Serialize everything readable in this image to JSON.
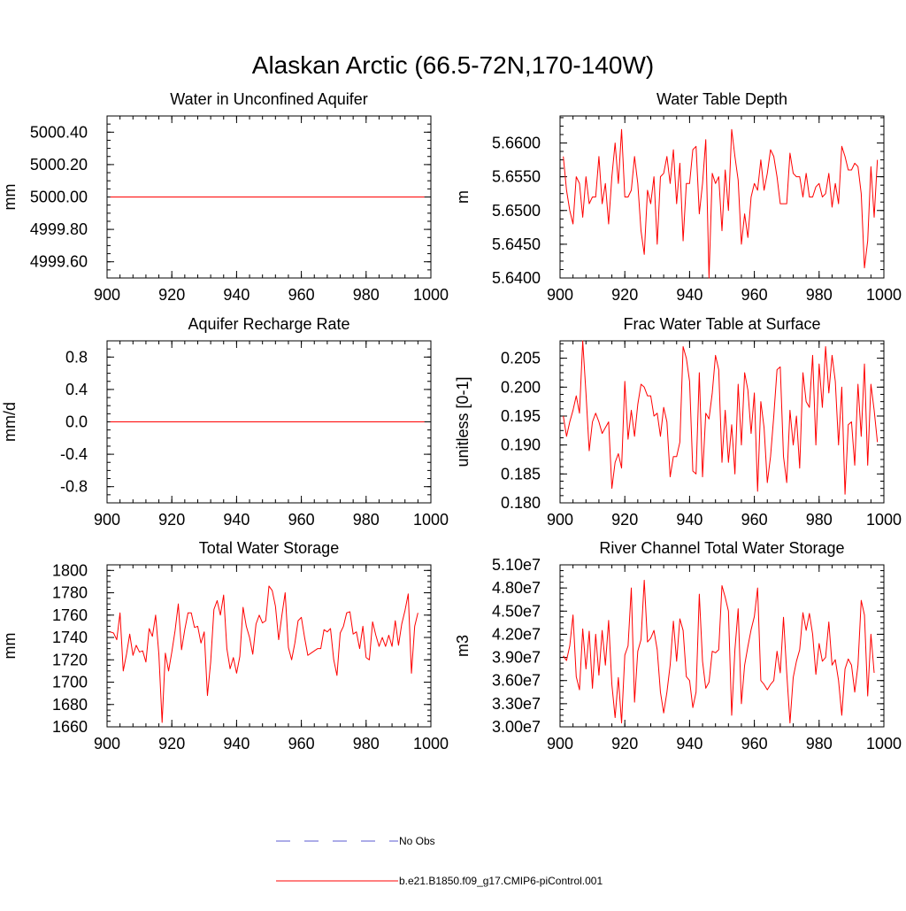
{
  "title": "Alaskan Arctic (66.5-72N,170-140W)",
  "colors": {
    "model": "#ff0000",
    "obs": "#5a5ad2",
    "axis": "#000000"
  },
  "legend": {
    "placement": "bottom-center",
    "entries": [
      {
        "label": "No Obs",
        "style": "dashed",
        "color": "#5a5ad2"
      },
      {
        "label": "b.e21.B1850.f09_g17.CMIP6-piControl.001",
        "style": "solid",
        "color": "#ff0000"
      }
    ]
  },
  "chart_data": [
    {
      "type": "line",
      "title": "Water in Unconfined Aquifer",
      "ylabel": "mm",
      "xlim": [
        900,
        1000
      ],
      "ylim": [
        4999.5,
        5000.5
      ],
      "xticks": [
        900,
        920,
        940,
        960,
        980,
        1000
      ],
      "xtick_labels": [
        "900",
        "920",
        "940",
        "960",
        "980",
        "1000"
      ],
      "yticks": [
        4999.6,
        4999.8,
        5000.0,
        5000.2,
        5000.4
      ],
      "ytick_labels": [
        "4999.60",
        "4999.80",
        "5000.00",
        "5000.20",
        "5000.40"
      ],
      "x_start": 901,
      "series": [
        {
          "values": [
            5000,
            5000,
            5000,
            5000,
            5000,
            5000,
            5000,
            5000,
            5000,
            5000,
            5000,
            5000,
            5000,
            5000,
            5000,
            5000,
            5000,
            5000,
            5000,
            5000,
            5000,
            5000,
            5000,
            5000,
            5000,
            5000,
            5000,
            5000,
            5000,
            5000,
            5000,
            5000,
            5000,
            5000,
            5000,
            5000,
            5000,
            5000,
            5000,
            5000,
            5000,
            5000,
            5000,
            5000,
            5000,
            5000,
            5000,
            5000,
            5000,
            5000,
            5000,
            5000,
            5000,
            5000,
            5000,
            5000,
            5000,
            5000,
            5000,
            5000,
            5000,
            5000,
            5000,
            5000,
            5000,
            5000,
            5000,
            5000,
            5000,
            5000,
            5000,
            5000,
            5000,
            5000,
            5000,
            5000,
            5000,
            5000,
            5000,
            5000,
            5000,
            5000,
            5000,
            5000,
            5000,
            5000,
            5000,
            5000,
            5000,
            5000,
            5000,
            5000,
            5000,
            5000,
            5000,
            5000,
            5000,
            5000
          ]
        }
      ]
    },
    {
      "type": "line",
      "title": "Water Table Depth",
      "ylabel": "m",
      "xlim": [
        900,
        1000
      ],
      "ylim": [
        5.64,
        5.664
      ],
      "xticks": [
        900,
        920,
        940,
        960,
        980,
        1000
      ],
      "xtick_labels": [
        "900",
        "920",
        "940",
        "960",
        "980",
        "1000"
      ],
      "yticks": [
        5.64,
        5.645,
        5.65,
        5.655,
        5.66
      ],
      "ytick_labels": [
        "5.6400",
        "5.6450",
        "5.6500",
        "5.6550",
        "5.6600"
      ],
      "x_start": 901,
      "series": [
        {
          "values": [
            5.658,
            5.653,
            5.65,
            5.648,
            5.655,
            5.654,
            5.649,
            5.655,
            5.651,
            5.652,
            5.652,
            5.658,
            5.651,
            5.654,
            5.648,
            5.655,
            5.66,
            5.654,
            5.662,
            5.652,
            5.652,
            5.653,
            5.658,
            5.654,
            5.647,
            5.6435,
            5.653,
            5.651,
            5.655,
            5.645,
            5.655,
            5.6555,
            5.658,
            5.654,
            5.659,
            5.651,
            5.657,
            5.6455,
            5.654,
            5.654,
            5.659,
            5.6595,
            5.6495,
            5.654,
            5.6605,
            5.64,
            5.6555,
            5.654,
            5.655,
            5.647,
            5.656,
            5.65,
            5.662,
            5.658,
            5.6545,
            5.645,
            5.6495,
            5.646,
            5.652,
            5.654,
            5.653,
            5.6575,
            5.653,
            5.6555,
            5.659,
            5.658,
            5.655,
            5.651,
            5.651,
            5.651,
            5.6585,
            5.6555,
            5.655,
            5.655,
            5.652,
            5.6555,
            5.652,
            5.652,
            5.6535,
            5.654,
            5.652,
            5.6525,
            5.6555,
            5.6505,
            5.654,
            5.651,
            5.6595,
            5.658,
            5.656,
            5.656,
            5.657,
            5.6565,
            5.6525,
            5.6415,
            5.6455,
            5.6565,
            5.649,
            5.6575
          ]
        }
      ]
    },
    {
      "type": "line",
      "title": "Aquifer Recharge Rate",
      "ylabel": "mm/d",
      "xlim": [
        900,
        1000
      ],
      "ylim": [
        -1,
        1
      ],
      "xticks": [
        900,
        920,
        940,
        960,
        980,
        1000
      ],
      "xtick_labels": [
        "900",
        "920",
        "940",
        "960",
        "980",
        "1000"
      ],
      "yticks": [
        -0.8,
        -0.4,
        0.0,
        0.4,
        0.8
      ],
      "ytick_labels": [
        "-0.8",
        "-0.4",
        "0.0",
        "0.4",
        "0.8"
      ],
      "x_start": 901,
      "series": [
        {
          "values": [
            0,
            0,
            0,
            0,
            0,
            0,
            0,
            0,
            0,
            0,
            0,
            0,
            0,
            0,
            0,
            0,
            0,
            0,
            0,
            0,
            0,
            0,
            0,
            0,
            0,
            0,
            0,
            0,
            0,
            0,
            0,
            0,
            0,
            0,
            0,
            0,
            0,
            0,
            0,
            0,
            0,
            0,
            0,
            0,
            0,
            0,
            0,
            0,
            0,
            0,
            0,
            0,
            0,
            0,
            0,
            0,
            0,
            0,
            0,
            0,
            0,
            0,
            0,
            0,
            0,
            0,
            0,
            0,
            0,
            0,
            0,
            0,
            0,
            0,
            0,
            0,
            0,
            0,
            0,
            0,
            0,
            0,
            0,
            0,
            0,
            0,
            0,
            0,
            0,
            0,
            0,
            0,
            0,
            0,
            0,
            0,
            0,
            0
          ]
        }
      ]
    },
    {
      "type": "line",
      "title": "Frac Water Table at Surface",
      "ylabel": "unitless [0-1]",
      "xlim": [
        900,
        1000
      ],
      "ylim": [
        0.18,
        0.208
      ],
      "xticks": [
        900,
        920,
        940,
        960,
        980,
        1000
      ],
      "xtick_labels": [
        "900",
        "920",
        "940",
        "960",
        "980",
        "1000"
      ],
      "yticks": [
        0.18,
        0.185,
        0.19,
        0.195,
        0.2,
        0.205
      ],
      "ytick_labels": [
        "0.180",
        "0.185",
        "0.190",
        "0.195",
        "0.200",
        "0.205"
      ],
      "x_start": 901,
      "series": [
        {
          "values": [
            0.195,
            0.1915,
            0.194,
            0.196,
            0.1985,
            0.1955,
            0.208,
            0.199,
            0.189,
            0.194,
            0.1955,
            0.194,
            0.192,
            0.193,
            0.194,
            0.1825,
            0.187,
            0.1885,
            0.186,
            0.201,
            0.191,
            0.196,
            0.1915,
            0.197,
            0.2005,
            0.2,
            0.1985,
            0.1985,
            0.195,
            0.1955,
            0.1915,
            0.1965,
            0.194,
            0.1845,
            0.188,
            0.188,
            0.1905,
            0.207,
            0.205,
            0.201,
            0.1855,
            0.185,
            0.2025,
            0.1845,
            0.1955,
            0.1945,
            0.199,
            0.2055,
            0.203,
            0.187,
            0.196,
            0.187,
            0.1935,
            0.185,
            0.2005,
            0.19,
            0.2025,
            0.1995,
            0.192,
            0.199,
            0.182,
            0.1975,
            0.193,
            0.1835,
            0.188,
            0.195,
            0.203,
            0.2035,
            0.188,
            0.1835,
            0.196,
            0.19,
            0.195,
            0.186,
            0.2025,
            0.1975,
            0.1965,
            0.2055,
            0.19,
            0.204,
            0.1965,
            0.207,
            0.199,
            0.2055,
            0.201,
            0.19,
            0.2,
            0.1815,
            0.1935,
            0.194,
            0.1865,
            0.2005,
            0.1915,
            0.204,
            0.1865,
            0.2005,
            0.196,
            0.1905
          ]
        }
      ]
    },
    {
      "type": "line",
      "title": "Total Water Storage",
      "ylabel": "mm",
      "xlim": [
        900,
        1000
      ],
      "ylim": [
        1660,
        1805
      ],
      "xticks": [
        900,
        920,
        940,
        960,
        980,
        1000
      ],
      "xtick_labels": [
        "900",
        "920",
        "940",
        "960",
        "980",
        "1000"
      ],
      "yticks": [
        1660,
        1680,
        1700,
        1720,
        1740,
        1760,
        1780,
        1800
      ],
      "ytick_labels": [
        "1660",
        "1680",
        "1700",
        "1720",
        "1740",
        "1760",
        "1780",
        "1800"
      ],
      "x_start": 901,
      "series": [
        {
          "values": [
            1745,
            1744,
            1738,
            1762,
            1710,
            1725,
            1743,
            1724,
            1733,
            1727,
            1728,
            1718,
            1748,
            1741,
            1760,
            1725,
            1664,
            1726,
            1710,
            1727,
            1746,
            1770,
            1729,
            1747,
            1762,
            1762,
            1749,
            1750,
            1735,
            1745,
            1688,
            1718,
            1765,
            1773,
            1760,
            1778,
            1730,
            1712,
            1722,
            1708,
            1723,
            1767,
            1750,
            1740,
            1725,
            1752,
            1760,
            1753,
            1755,
            1786,
            1782,
            1768,
            1738,
            1760,
            1780,
            1731,
            1720,
            1735,
            1755,
            1758,
            1740,
            1724,
            1726,
            1728,
            1730,
            1730,
            1747,
            1745,
            1748,
            1720,
            1706,
            1744,
            1750,
            1762,
            1763,
            1743,
            1745,
            1730,
            1750,
            1722,
            1720,
            1754,
            1742,
            1732,
            1740,
            1732,
            1742,
            1732,
            1755,
            1733,
            1752,
            1764,
            1779,
            1708,
            1750,
            1762
          ]
        }
      ]
    },
    {
      "type": "line",
      "title": "River Channel Total Water Storage",
      "ylabel": "m3",
      "xlim": [
        900,
        1000
      ],
      "ylim": [
        30000000,
        51000000
      ],
      "xticks": [
        900,
        920,
        940,
        960,
        980,
        1000
      ],
      "xtick_labels": [
        "900",
        "920",
        "940",
        "960",
        "980",
        "1000"
      ],
      "yticks": [
        30000000,
        33000000,
        36000000,
        39000000,
        42000000,
        45000000,
        48000000,
        51000000
      ],
      "ytick_labels": [
        "3.00e7",
        "3.30e7",
        "3.60e7",
        "3.90e7",
        "4.20e7",
        "4.50e7",
        "4.80e7",
        "5.10e7"
      ],
      "x_start": 901,
      "series": [
        {
          "values": [
            39200000,
            38600000,
            40500000,
            44500000,
            36500000,
            34800000,
            42700000,
            37500000,
            42400000,
            35000000,
            42000000,
            36700000,
            42500000,
            38000000,
            43800000,
            35500000,
            31200000,
            36400000,
            30500000,
            39300000,
            40500000,
            48000000,
            33200000,
            39800000,
            41300000,
            49000000,
            41000000,
            41500000,
            42500000,
            40000000,
            34500000,
            31800000,
            34500000,
            38000000,
            43700000,
            38500000,
            44000000,
            42500000,
            36500000,
            36000000,
            32500000,
            34500000,
            47200000,
            38500000,
            35000000,
            35800000,
            39800000,
            39600000,
            40000000,
            48300000,
            46800000,
            45000000,
            31500000,
            40000000,
            45300000,
            33000000,
            38000000,
            40400000,
            42600000,
            44300000,
            48000000,
            36000000,
            35500000,
            34800000,
            35500000,
            36000000,
            39800000,
            37000000,
            44200000,
            37000000,
            30500000,
            36400000,
            38500000,
            40000000,
            44800000,
            42500000,
            44700000,
            42000000,
            36800000,
            40800000,
            38500000,
            39000000,
            43600000,
            38000000,
            38700000,
            36000000,
            31500000,
            37500000,
            38800000,
            38000000,
            34500000,
            38000000,
            46400000,
            44500000,
            34000000,
            42000000,
            37000000
          ]
        }
      ]
    }
  ]
}
